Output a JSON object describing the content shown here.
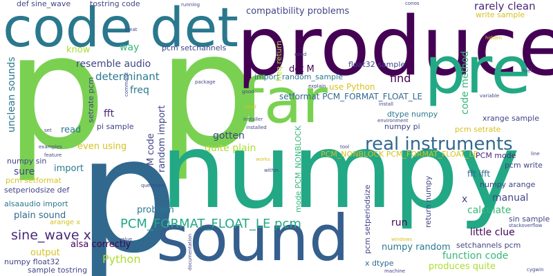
{
  "colors": {
    "background": "#ffffff",
    "light_green": "#7ad151",
    "green": "#22a884",
    "teal": "#2a788e",
    "blue": "#31688e",
    "navy": "#414487",
    "purple": "#440154",
    "yellow": "#d5c21e",
    "lime": "#addc30"
  },
  "words": {
    "p_big": "p",
    "p_mid": "p",
    "p_low": "p",
    "numpy": "numpy",
    "produce": "produce",
    "code_det": "code det",
    "pre": "pre",
    "far": "far",
    "sound": "sound",
    "real_instruments": "real instruments",
    "pcm_format_float_le_pcm": "PCM_FORMAT_FLOAT_LE pcm",
    "sine_wave_x": "sine_wave x",
    "def_sine_wave": "def sine_wave",
    "tostring_code": "tostring code",
    "compatibility_problems": "compatibility problems",
    "rarely_clean": "rarely clean",
    "write_sample": "write sample",
    "know": "know",
    "way": "way",
    "pcm_setchannels": "pcm setchannels",
    "resemble_audio": "resemble audio",
    "determinant": "determinant",
    "freq": "freq",
    "det_m": "det M",
    "float32_sample": "float32 sample",
    "import_random_sample": "import random_sample",
    "use_python": "use Python",
    "find": "find",
    "setformat_pcm_format_float_le": "setformat PCM_FORMAT_FLOAT_LE",
    "dtype_numpy": "dtype numpy",
    "numpy_pi": "numpy pi",
    "pcm_setrate": "pcm setrate",
    "xrange_sample": "xrange sample",
    "fft": "fft",
    "pi_sample": "pi sample",
    "read": "read",
    "gotten": "gotten",
    "quite_plain": "quite plain",
    "even_using": "even using",
    "pcm_nonblock_pcm_format_float_le": "PCM_NONBLOCK PCM_FORMAT_FLOAT_LE",
    "pcm_mode": "PCM mode",
    "fft_ifft": "fft ifft",
    "pcm_write": "pcm write",
    "numpy_arange": "numpy arange",
    "x": "x",
    "manual": "manual",
    "calculate": "calculate",
    "sin_sample": "sin sample",
    "numpy_sin": "numpy sin",
    "sure": "sure",
    "import": "import",
    "pcm_setformat": "pcm setformat",
    "setperiodsize_def": "setperiodsize def",
    "alsaaudio_import": "alsaaudio import",
    "plain_sound": "plain sound",
    "problem": "problem",
    "arange_x": "arange x",
    "alsa_correctly": "alsa correctly",
    "output": "output",
    "python": "Python",
    "numpy_float32": "numpy float32",
    "sample_tostring": "sample tostring",
    "run": "run",
    "numpy_random": "numpy random",
    "little_clue": "little clue",
    "setchannels_pcm": "setchannels pcm",
    "function_code": "function code",
    "x_dtype": "x dtype",
    "produces_quite": "produces quite",
    "unclean_sounds": "unclean sounds",
    "setrate_pcm": "setrate pcm",
    "m_code": "M code",
    "random_import": "random import",
    "freq_return": "freq return",
    "code_method": "code method",
    "mode_pcm_nonblock": "mode PCM_NONBLOCK",
    "pcm_setperiodsize": "pcm setperiodsize",
    "return_numpy": "return numpy",
    "running": "running",
    "great": "great",
    "conos": "conos",
    "need": "need",
    "hidden": "hidden",
    "href": "href",
    "package": "package",
    "explain": "explain",
    "good": "good",
    "install": "install",
    "variable": "variable",
    "used": "used",
    "environment": "environment",
    "installer": "installer",
    "installed": "installed",
    "set": "set",
    "tool": "tool",
    "examples": "examples",
    "feature": "feature",
    "works": "works",
    "within": "within",
    "questions": "questions",
    "line": "line",
    "stackoverflow": "stackoverflow",
    "windows": "windows",
    "value": "value",
    "machine": "machine",
    "cygwin": "cygwin",
    "documentation": "documentation",
    "command": "command"
  }
}
